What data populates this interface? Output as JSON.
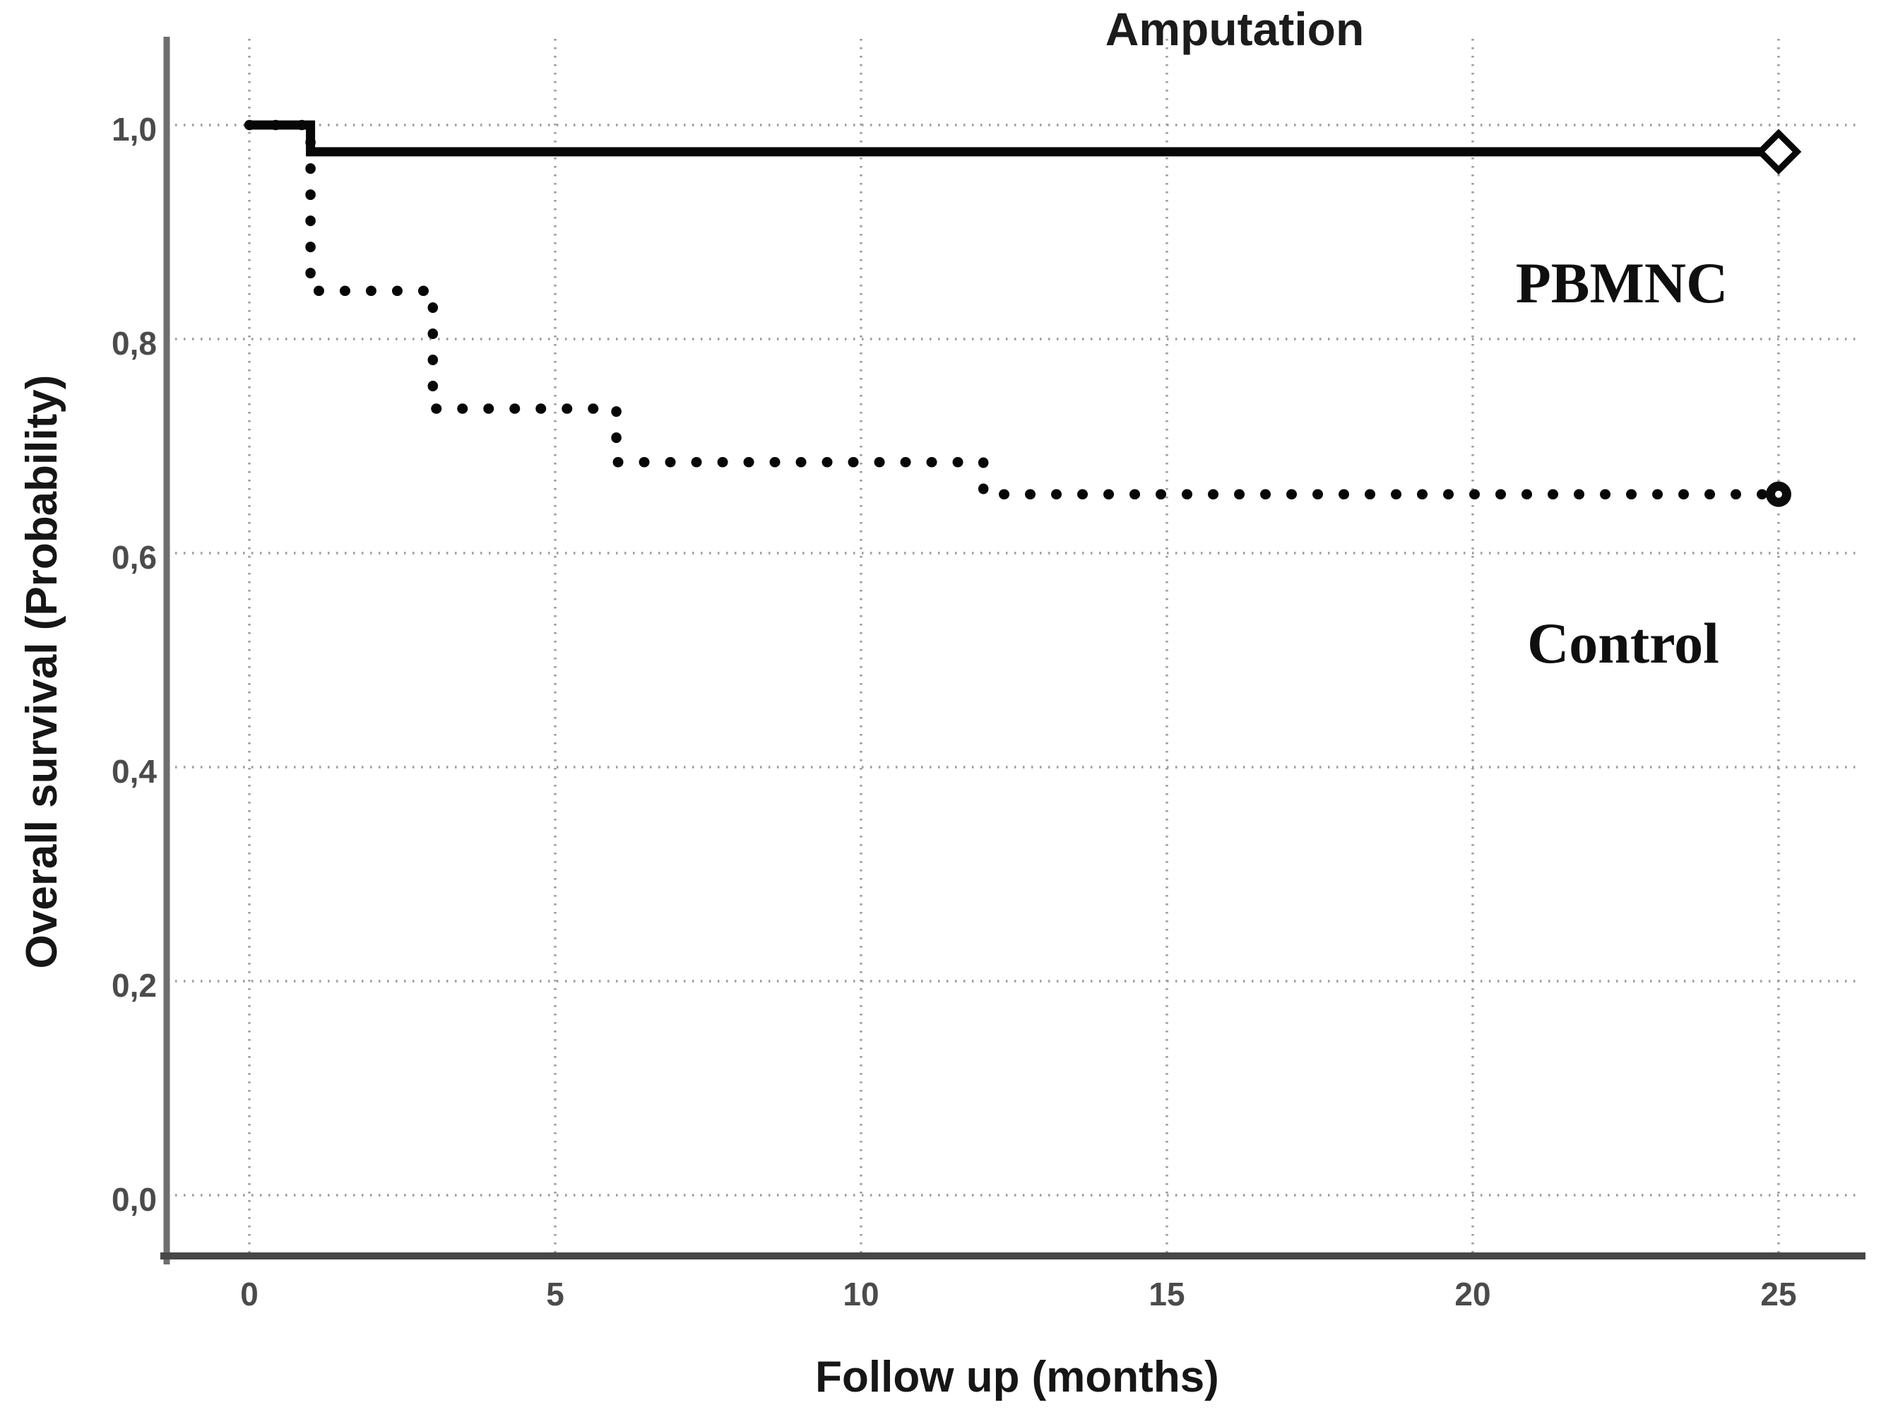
{
  "figure": {
    "title": "Amputation",
    "x_axis_title": "Follow up (months)",
    "y_axis_title": "Overall survival (Probability)",
    "legend": {
      "pbmnc_label": "PBMNC",
      "control_label": "Control"
    },
    "colors": {
      "background": "#ffffff",
      "curves": "#070707",
      "gridlines": "#9b9b9b",
      "tick_text": "#4b4b4b",
      "axis_lines": "#555555"
    }
  },
  "chart_data": {
    "type": "line",
    "subtype": "kaplan-meier-step",
    "title": "Amputation",
    "xlabel": "Follow up (months)",
    "ylabel": "Overall survival (Probability)",
    "xlim": [
      0,
      25
    ],
    "ylim": [
      0.0,
      1.0
    ],
    "grid": true,
    "legend_position": "inside-right",
    "x_ticks": [
      {
        "value": 0,
        "label": "0"
      },
      {
        "value": 5,
        "label": "5"
      },
      {
        "value": 10,
        "label": "10"
      },
      {
        "value": 15,
        "label": "15"
      },
      {
        "value": 20,
        "label": "20"
      },
      {
        "value": 25,
        "label": "25"
      }
    ],
    "y_ticks": [
      {
        "value": 1.0,
        "label": "1,0"
      },
      {
        "value": 0.8,
        "label": "0,8"
      },
      {
        "value": 0.6,
        "label": "0,6"
      },
      {
        "value": 0.4,
        "label": "0,4"
      },
      {
        "value": 0.2,
        "label": "0,2"
      },
      {
        "value": 0.0,
        "label": "0,0"
      }
    ],
    "series": [
      {
        "name": "PBMNC",
        "line_style": "solid",
        "end_marker": "open-diamond",
        "steps": [
          [
            0,
            1.0
          ],
          [
            1,
            1.0
          ],
          [
            1,
            0.975
          ],
          [
            25,
            0.975
          ]
        ]
      },
      {
        "name": "Control",
        "line_style": "dotted",
        "end_marker": "filled-circle",
        "steps": [
          [
            0,
            1.0
          ],
          [
            1,
            1.0
          ],
          [
            1,
            0.845
          ],
          [
            3,
            0.845
          ],
          [
            3,
            0.735
          ],
          [
            6,
            0.735
          ],
          [
            6,
            0.685
          ],
          [
            12,
            0.685
          ],
          [
            12,
            0.655
          ],
          [
            25,
            0.655
          ]
        ]
      }
    ]
  }
}
